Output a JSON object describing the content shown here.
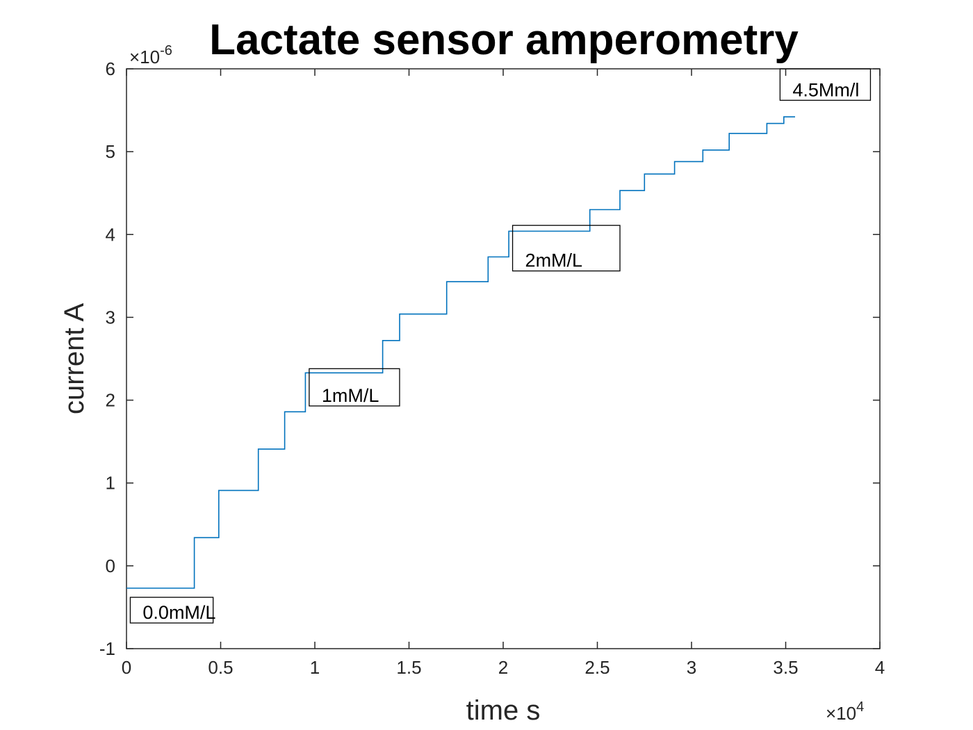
{
  "chart_data": {
    "type": "line",
    "title": "Lactate sensor amperometry",
    "xlabel": "time s",
    "ylabel": "current A",
    "xlim": [
      0,
      40000
    ],
    "ylim": [
      -1e-06,
      6e-06
    ],
    "x_multiplier_label": "×10",
    "x_multiplier_exp": "4",
    "y_multiplier_label": "×10",
    "y_multiplier_exp": "-6",
    "xticks": [
      0,
      5000,
      10000,
      15000,
      20000,
      25000,
      30000,
      35000,
      40000
    ],
    "xtick_labels": [
      "0",
      "0.5",
      "1",
      "1.5",
      "2",
      "2.5",
      "3",
      "3.5",
      "4"
    ],
    "yticks": [
      -1e-06,
      0,
      1e-06,
      2e-06,
      3e-06,
      4e-06,
      5e-06,
      6e-06
    ],
    "ytick_labels": [
      "-1",
      "0",
      "1",
      "2",
      "3",
      "4",
      "5",
      "6"
    ],
    "grid": false,
    "line_color": "#0072BD",
    "series": [
      {
        "x": [
          0,
          3600,
          3600,
          4900,
          4900,
          7000,
          7000,
          8400,
          8400,
          9500,
          9500,
          13600,
          13600,
          14500,
          14500,
          17000,
          17000,
          19200,
          19200,
          20300,
          20300,
          24600,
          24600,
          26200,
          26200,
          27500,
          27500,
          29100,
          29100,
          30600,
          30600,
          32000,
          32000,
          34000,
          34000,
          34900,
          34900,
          35500
        ],
        "y": [
          -2.7e-07,
          -2.7e-07,
          3.4e-07,
          3.4e-07,
          9.1e-07,
          9.1e-07,
          1.41e-06,
          1.41e-06,
          1.86e-06,
          1.86e-06,
          2.33e-06,
          2.33e-06,
          2.72e-06,
          2.72e-06,
          3.04e-06,
          3.04e-06,
          3.43e-06,
          3.43e-06,
          3.73e-06,
          3.73e-06,
          4.04e-06,
          4.04e-06,
          4.3e-06,
          4.3e-06,
          4.53e-06,
          4.53e-06,
          4.73e-06,
          4.73e-06,
          4.88e-06,
          4.88e-06,
          5.02e-06,
          5.02e-06,
          5.22e-06,
          5.22e-06,
          5.34e-06,
          5.34e-06,
          5.42e-06,
          5.42e-06
        ]
      }
    ],
    "annotations": [
      {
        "text": "0.0mM/L",
        "x0": 200,
        "x1": 4600,
        "y0": -6.9e-07,
        "y1": -3.8e-07
      },
      {
        "text": "1mM/L",
        "x0": 9700,
        "x1": 14500,
        "y0": 1.93e-06,
        "y1": 2.38e-06
      },
      {
        "text": "2mM/L",
        "x0": 20500,
        "x1": 26200,
        "y0": 3.56e-06,
        "y1": 4.11e-06
      },
      {
        "text": "4.5Mm/l",
        "x0": 34700,
        "x1": 39500,
        "y0": 5.62e-06,
        "y1": 6e-06
      }
    ]
  }
}
